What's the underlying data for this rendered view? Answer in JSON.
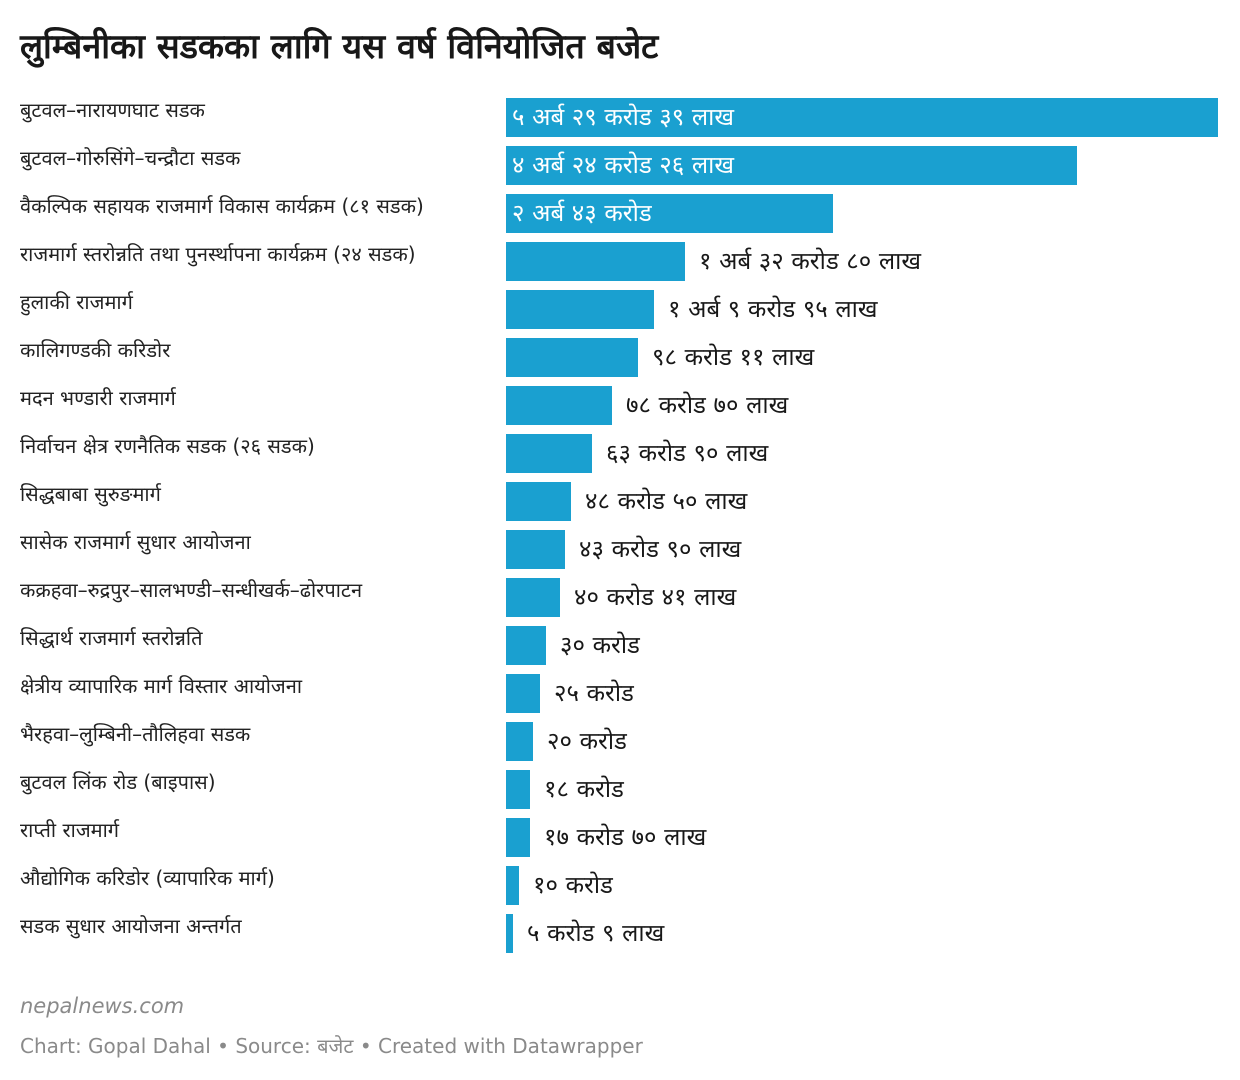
{
  "title": "लुम्बिनीका सडकका लागि यस वर्ष विनियोजित बजेट",
  "branding": "nepalnews.com",
  "footer": {
    "credit": "Chart: Gopal Dahal",
    "source_label": "Source: बजेट",
    "tool": "Created with Datawrapper",
    "separator": "•"
  },
  "colors": {
    "bar": "#1aa0d0",
    "text": "#181818",
    "muted": "#8a8a8a"
  },
  "chart_data": {
    "type": "bar",
    "orientation": "horizontal",
    "title": "लुम्बिनीका सडकका लागि यस वर्ष विनियोजित बजेट",
    "xlabel": "",
    "ylabel": "",
    "unit": "करोड",
    "xlim": [
      0,
      529.39
    ],
    "categories": [
      "बुटवल–नारायणघाट सडक",
      "बुटवल–गोरुसिंगे–चन्द्रौटा सडक",
      "वैकल्पिक सहायक राजमार्ग विकास कार्यक्रम (८१ सडक)",
      "राजमार्ग स्तरोन्नति तथा पुनर्स्थापना कार्यक्रम (२४ सडक)",
      "हुलाकी राजमार्ग",
      "कालिगण्डकी करिडोर",
      "मदन भण्डारी राजमार्ग",
      "निर्वाचन क्षेत्र रणनैतिक सडक (२६ सडक)",
      "सिद्धबाबा सुरुङमार्ग",
      "सासेक राजमार्ग सुधार आयोजना",
      "कक्रहवा–रुद्रपुर–सालभण्डी–सन्धीखर्क–ढोरपाटन",
      "सिद्धार्थ राजमार्ग स्तरोन्नति",
      "क्षेत्रीय व्यापारिक मार्ग विस्तार आयोजना",
      "भैरहवा–लुम्बिनी–तौलिहवा सडक",
      "बुटवल लिंक रोड (बाइपास)",
      "राप्ती राजमार्ग",
      "औद्योगिक करिडोर (व्यापारिक मार्ग)",
      "सडक सुधार आयोजना अन्तर्गत"
    ],
    "values": [
      529.39,
      424.26,
      243,
      132.8,
      109.95,
      98.11,
      78.7,
      63.9,
      48.5,
      43.9,
      40.41,
      30,
      25,
      20,
      18,
      17.7,
      10,
      5.09
    ],
    "value_labels": [
      "५ अर्ब २९ करोड ३९ लाख",
      "४ अर्ब २४ करोड २६ लाख",
      "२ अर्ब ४३ करोड",
      "१ अर्ब ३२ करोड ८० लाख",
      "१ अर्ब ९ करोड ९५ लाख",
      "९८ करोड ११ लाख",
      "७८ करोड ७० लाख",
      "६३ करोड ९० लाख",
      "४८ करोड ५० लाख",
      "४३ करोड ९० लाख",
      "४० करोड ४१ लाख",
      "३० करोड",
      "२५ करोड",
      "२० करोड",
      "१८ करोड",
      "१७ करोड ७० लाख",
      "१० करोड",
      "५ करोड ९ लाख"
    ],
    "labels_inside": [
      true,
      true,
      true,
      false,
      false,
      false,
      false,
      false,
      false,
      false,
      false,
      false,
      false,
      false,
      false,
      false,
      false,
      false
    ]
  }
}
